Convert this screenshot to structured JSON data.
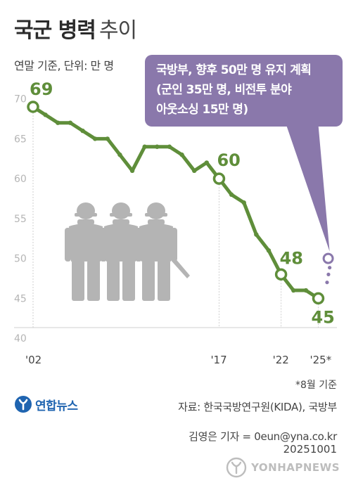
{
  "title": {
    "main": "국군 병력",
    "sub": "추이"
  },
  "unit_label": "연말 기준, 단위: 만 명",
  "callout": {
    "lines": [
      "국방부, 향후 50만 명 유지 계획",
      "(군인 35만 명, 비전투 분야",
      "아웃소싱 15만 명)"
    ]
  },
  "chart_data": {
    "type": "line",
    "title": "국군 병력 추이",
    "subtitle": "연말 기준, 단위: 만 명",
    "xlabel": "",
    "ylabel": "",
    "ylim": [
      40,
      71
    ],
    "yticks": [
      40,
      45,
      50,
      55,
      60,
      65,
      70
    ],
    "xticks": [
      {
        "year": 2002,
        "label": "'02"
      },
      {
        "year": 2017,
        "label": "'17"
      },
      {
        "year": 2022,
        "label": "'22"
      },
      {
        "year": 2025,
        "label": "'25*"
      }
    ],
    "grid": false,
    "series": [
      {
        "color": "#5f8e3a",
        "x": [
          2002,
          2003,
          2004,
          2005,
          2006,
          2007,
          2008,
          2009,
          2010,
          2011,
          2012,
          2013,
          2014,
          2015,
          2016,
          2017,
          2018,
          2019,
          2020,
          2021,
          2022,
          2023,
          2024,
          2025
        ],
        "values": [
          69,
          68,
          67,
          67,
          66,
          65,
          65,
          63,
          61,
          64,
          64,
          64,
          63,
          61,
          62,
          60,
          58,
          57,
          53,
          51,
          48,
          46,
          46,
          45
        ]
      }
    ],
    "projection": {
      "color": "#8a78ab",
      "from": {
        "x": 2025,
        "value": 45
      },
      "to": {
        "x": 2025.8,
        "value": 50
      }
    },
    "highlighted": [
      {
        "x": 2002,
        "value": 69,
        "label": "69"
      },
      {
        "x": 2017,
        "value": 60,
        "label": "60"
      },
      {
        "x": 2022,
        "value": 48,
        "label": "48"
      },
      {
        "x": 2025,
        "value": 45,
        "label": "45"
      }
    ]
  },
  "footnote": "*8월 기준",
  "logo": {
    "text": "연합뉴스",
    "icon": "yonhap-logo-icon",
    "color": "#1f64b0"
  },
  "source": "자료: 한국국방연구원(KIDA), 국방부",
  "byline": "김영은 기자 = 0eun@yna.co.kr",
  "date": "20251001",
  "watermark": {
    "text": "YONHAPNEWS",
    "icon": "yonhap-watermark-icon"
  },
  "colors": {
    "line": "#5f8e3a",
    "callout": "#8a78ab",
    "soldiers": "#b4b4b4"
  }
}
